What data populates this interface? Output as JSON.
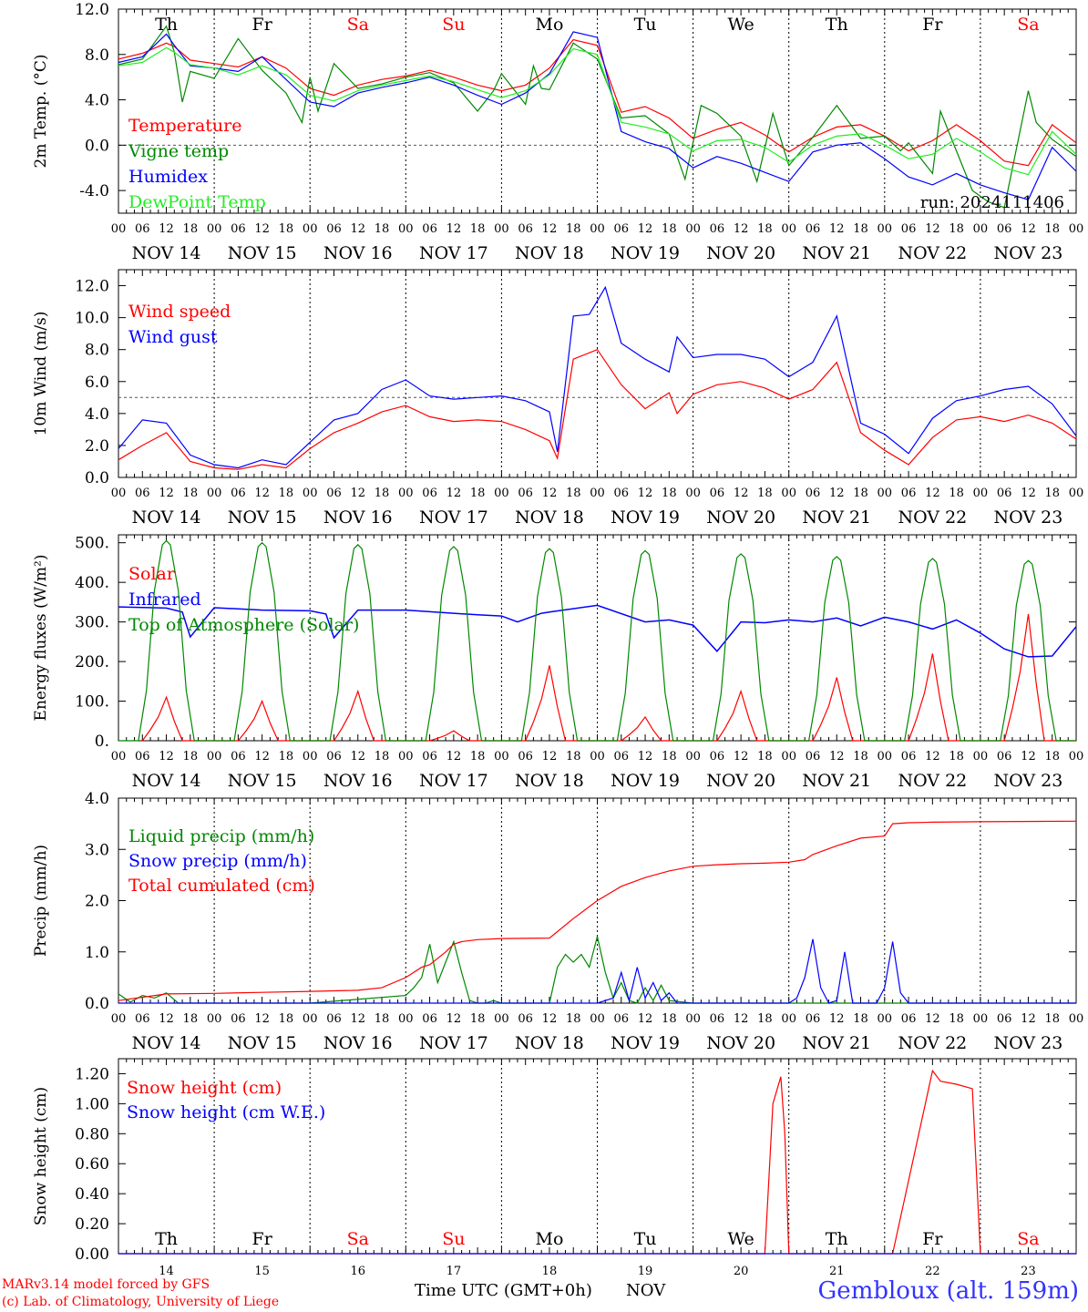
{
  "colors": {
    "red": "#ff0000",
    "green": "#008800",
    "blue": "#0000ff",
    "lightgreen": "#22ee22",
    "weekend": "#ff0000"
  },
  "weekday_labels": [
    "Th",
    "Fr",
    "Sa",
    "Su",
    "Mo",
    "Tu",
    "We",
    "Th",
    "Fr",
    "Sa"
  ],
  "weekend_days": [
    2,
    3,
    9
  ],
  "date_labels": [
    "NOV 14",
    "NOV 15",
    "NOV 16",
    "NOV 17",
    "NOV 18",
    "NOV 19",
    "NOV 20",
    "NOV 21",
    "NOV 22",
    "NOV 23"
  ],
  "hour_ticks": [
    "00",
    "06",
    "12",
    "18"
  ],
  "last_tick_label": "00",
  "bottom_day_numbers": [
    "14",
    "15",
    "16",
    "17",
    "18",
    "19",
    "20",
    "21",
    "22",
    "23"
  ],
  "run_label": "run: 2024111406",
  "footer": {
    "model": "MARv3.14 model forced by GFS",
    "lab": "(c) Lab. of Climatology, University of Liege",
    "xlabel": "Time UTC (GMT+0h)",
    "month": "NOV",
    "station": "Gembloux (alt. 159m)"
  },
  "chart_data": [
    {
      "type": "line",
      "ylabel": "2m Temp. (°C)",
      "ylim": [
        -6,
        12
      ],
      "yticks": [
        "-4.0",
        "0.0",
        "4.0",
        "8.0",
        "12.0"
      ],
      "refline": 0,
      "x_unit": "hours since NOV 14 00 UTC",
      "series": [
        {
          "name": "Temperature",
          "color": "#ff0000",
          "x": [
            0,
            6,
            12,
            14,
            18,
            24,
            30,
            36,
            42,
            48,
            54,
            60,
            66,
            72,
            78,
            84,
            90,
            96,
            102,
            108,
            114,
            120,
            126,
            132,
            138,
            144,
            150,
            156,
            162,
            168,
            174,
            180,
            186,
            192,
            198,
            204,
            210,
            216,
            222,
            228,
            234,
            240
          ],
          "values": [
            7.6,
            8.1,
            9.0,
            8.7,
            7.5,
            7.2,
            6.9,
            7.8,
            6.8,
            5.0,
            4.4,
            5.3,
            5.8,
            6.1,
            6.6,
            6.0,
            5.3,
            4.8,
            5.3,
            6.8,
            9.3,
            8.8,
            2.9,
            3.4,
            2.4,
            0.6,
            1.4,
            2.0,
            0.9,
            -0.6,
            0.7,
            1.6,
            1.8,
            0.8,
            -0.5,
            0.4,
            1.8,
            0.4,
            -1.4,
            -1.8,
            1.8,
            0.2
          ]
        },
        {
          "name": "Vigne temp",
          "color": "#008800",
          "x": [
            0,
            6,
            12,
            14,
            16,
            18,
            24,
            30,
            36,
            42,
            46,
            48,
            50,
            54,
            60,
            66,
            72,
            78,
            84,
            90,
            94,
            96,
            102,
            104,
            106,
            108,
            114,
            120,
            126,
            132,
            138,
            142,
            146,
            150,
            156,
            160,
            164,
            168,
            174,
            180,
            186,
            192,
            196,
            198,
            204,
            206,
            210,
            214,
            218,
            222,
            228,
            230,
            234,
            240
          ],
          "values": [
            7.1,
            7.6,
            10.5,
            8.2,
            3.8,
            6.5,
            5.9,
            9.4,
            6.6,
            4.6,
            2.0,
            6.0,
            3.0,
            7.2,
            5.0,
            5.4,
            6.0,
            6.4,
            5.5,
            3.0,
            4.8,
            6.3,
            3.6,
            7.0,
            5.0,
            4.9,
            9.0,
            7.6,
            2.4,
            2.6,
            1.0,
            -3.0,
            3.5,
            2.8,
            0.8,
            -3.2,
            2.8,
            -1.8,
            0.7,
            3.5,
            0.6,
            0.8,
            -0.5,
            0.2,
            -2.5,
            3.0,
            -0.5,
            -4.0,
            -5.0,
            -5.5,
            4.8,
            2.0,
            0.5,
            -1.0
          ]
        },
        {
          "name": "Humidex",
          "color": "#0000ff",
          "x": [
            0,
            6,
            12,
            14,
            18,
            24,
            30,
            36,
            42,
            48,
            54,
            60,
            66,
            72,
            78,
            84,
            90,
            96,
            102,
            108,
            114,
            120,
            126,
            132,
            138,
            144,
            150,
            156,
            162,
            168,
            174,
            180,
            186,
            192,
            198,
            204,
            210,
            216,
            222,
            228,
            234,
            240
          ],
          "values": [
            7.3,
            7.8,
            9.8,
            8.8,
            7.0,
            6.8,
            6.5,
            7.8,
            5.8,
            3.8,
            3.4,
            4.6,
            5.1,
            5.5,
            6.0,
            5.3,
            4.4,
            3.6,
            4.6,
            6.3,
            10.0,
            9.5,
            1.2,
            0.3,
            -0.3,
            -2.0,
            -1.0,
            -1.6,
            -2.4,
            -3.2,
            -0.6,
            0.0,
            0.2,
            -1.2,
            -2.8,
            -3.5,
            -2.5,
            -3.5,
            -4.2,
            -4.8,
            -0.2,
            -2.3
          ]
        },
        {
          "name": "DewPoint Temp",
          "color": "#22ee22",
          "x": [
            0,
            6,
            12,
            14,
            18,
            24,
            30,
            36,
            42,
            48,
            54,
            60,
            66,
            72,
            78,
            84,
            90,
            96,
            102,
            108,
            114,
            120,
            126,
            132,
            138,
            144,
            150,
            156,
            162,
            168,
            174,
            180,
            186,
            192,
            198,
            204,
            210,
            216,
            222,
            228,
            234,
            240
          ],
          "values": [
            7.0,
            7.3,
            8.6,
            8.2,
            7.1,
            6.8,
            6.2,
            7.0,
            6.2,
            4.4,
            3.9,
            4.8,
            5.3,
            5.7,
            6.1,
            5.6,
            4.9,
            4.2,
            4.8,
            6.2,
            8.5,
            8.0,
            2.0,
            1.6,
            1.0,
            -0.5,
            0.4,
            0.5,
            -0.2,
            -1.5,
            0.0,
            0.8,
            1.0,
            0.0,
            -1.2,
            -0.8,
            0.6,
            -0.6,
            -2.0,
            -2.6,
            1.2,
            -0.8
          ]
        }
      ]
    },
    {
      "type": "line",
      "ylabel": "10m Wind (m/s)",
      "ylim": [
        0,
        13
      ],
      "yticks": [
        "0.0",
        "2.0",
        "4.0",
        "6.0",
        "8.0",
        "10.0",
        "12.0"
      ],
      "refline": 5,
      "x_unit": "hours since NOV 14 00 UTC",
      "series": [
        {
          "name": "Wind speed",
          "color": "#ff0000",
          "x": [
            0,
            6,
            12,
            18,
            24,
            30,
            36,
            42,
            48,
            54,
            60,
            66,
            72,
            78,
            84,
            90,
            96,
            102,
            108,
            110,
            114,
            120,
            126,
            132,
            138,
            140,
            144,
            150,
            156,
            162,
            168,
            174,
            180,
            186,
            192,
            198,
            204,
            210,
            216,
            222,
            228,
            234,
            240
          ],
          "values": [
            1.1,
            2.0,
            2.8,
            1.0,
            0.6,
            0.5,
            0.8,
            0.6,
            1.8,
            2.8,
            3.4,
            4.1,
            4.5,
            3.8,
            3.5,
            3.6,
            3.5,
            3.0,
            2.3,
            1.2,
            7.4,
            8.0,
            5.8,
            4.3,
            5.3,
            4.0,
            5.2,
            5.8,
            6.0,
            5.6,
            4.9,
            5.5,
            7.2,
            2.8,
            1.7,
            0.8,
            2.5,
            3.6,
            3.8,
            3.5,
            3.9,
            3.4,
            2.4
          ]
        },
        {
          "name": "Wind gust",
          "color": "#0000ff",
          "x": [
            0,
            6,
            12,
            18,
            24,
            30,
            36,
            42,
            48,
            54,
            60,
            66,
            72,
            78,
            84,
            90,
            96,
            102,
            108,
            110,
            114,
            118,
            122,
            126,
            132,
            138,
            140,
            144,
            150,
            156,
            162,
            168,
            174,
            180,
            186,
            192,
            198,
            204,
            210,
            216,
            222,
            228,
            234,
            240
          ],
          "values": [
            1.8,
            3.6,
            3.4,
            1.4,
            0.8,
            0.6,
            1.1,
            0.8,
            2.2,
            3.6,
            4.0,
            5.5,
            6.1,
            5.1,
            4.9,
            5.0,
            5.1,
            4.8,
            4.1,
            1.6,
            10.1,
            10.2,
            11.9,
            8.4,
            7.4,
            6.6,
            8.8,
            7.5,
            7.7,
            7.7,
            7.4,
            6.3,
            7.2,
            10.1,
            3.4,
            2.7,
            1.5,
            3.7,
            4.8,
            5.1,
            5.5,
            5.7,
            4.6,
            2.6
          ]
        }
      ]
    },
    {
      "type": "line",
      "ylabel": "Energy fluxes (W/m²)",
      "ylim": [
        0,
        520
      ],
      "yticks": [
        "0.",
        "100.",
        "200.",
        "300.",
        "400.",
        "500."
      ],
      "x_unit": "hours since NOV 14 00 UTC",
      "series": [
        {
          "name": "Solar",
          "color": "#ff0000",
          "values_daily": [
            110,
            100,
            125,
            25,
            190,
            60,
            125,
            160,
            220,
            320
          ]
        },
        {
          "name": "Infrared",
          "color": "#0000ff",
          "x": [
            0,
            12,
            16,
            18,
            24,
            36,
            48,
            52,
            54,
            60,
            72,
            84,
            90,
            96,
            100,
            106,
            108,
            120,
            132,
            138,
            144,
            150,
            156,
            162,
            168,
            174,
            180,
            186,
            192,
            198,
            204,
            210,
            216,
            222,
            228,
            234,
            240
          ],
          "values": [
            338,
            335,
            325,
            262,
            336,
            330,
            328,
            320,
            260,
            330,
            330,
            322,
            318,
            315,
            300,
            322,
            325,
            342,
            300,
            305,
            292,
            226,
            300,
            298,
            305,
            300,
            310,
            290,
            312,
            300,
            282,
            305,
            272,
            232,
            212,
            214,
            288
          ]
        },
        {
          "name": "Top of Atmosphere (Solar)",
          "color": "#008800",
          "values_daily": [
            505,
            500,
            495,
            490,
            485,
            480,
            472,
            465,
            460,
            455
          ]
        }
      ]
    },
    {
      "type": "line",
      "ylabel": "Precip (mm/h)",
      "ylim": [
        0,
        4
      ],
      "yticks": [
        "0.0",
        "1.0",
        "2.0",
        "3.0",
        "4.0"
      ],
      "x_unit": "hours since NOV 14 00 UTC",
      "series": [
        {
          "name": "Liquid precip (mm/h)",
          "color": "#008800",
          "x": [
            0,
            3,
            6,
            9,
            12,
            15,
            18,
            24,
            48,
            72,
            74,
            76,
            78,
            80,
            82,
            84,
            86,
            88,
            90,
            92,
            94,
            96,
            102,
            108,
            110,
            112,
            114,
            116,
            118,
            120,
            122,
            124,
            126,
            128,
            130,
            132,
            134,
            136,
            138,
            144,
            150,
            240
          ],
          "values": [
            0.18,
            0.02,
            0.15,
            0.1,
            0.2,
            0.0,
            0.0,
            0.0,
            0.0,
            0.15,
            0.3,
            0.5,
            1.15,
            0.4,
            0.8,
            1.2,
            0.6,
            0.05,
            0.0,
            0.0,
            0.05,
            0.0,
            0.0,
            0.0,
            0.7,
            0.95,
            0.8,
            0.95,
            0.7,
            1.3,
            0.6,
            0.1,
            0.4,
            0.05,
            0.0,
            0.3,
            0.05,
            0.35,
            0.05,
            0.0,
            0.0,
            0.0
          ]
        },
        {
          "name": "Snow precip (mm/h)",
          "color": "#0000ff",
          "x": [
            0,
            120,
            124,
            126,
            128,
            130,
            132,
            134,
            136,
            138,
            140,
            144,
            168,
            170,
            172,
            174,
            176,
            178,
            180,
            182,
            184,
            186,
            190,
            192,
            194,
            196,
            198,
            200,
            240
          ],
          "values": [
            0.0,
            0.0,
            0.1,
            0.6,
            0.05,
            0.7,
            0.1,
            0.4,
            0.05,
            0.2,
            0.0,
            0.0,
            0.0,
            0.1,
            0.5,
            1.25,
            0.3,
            0.0,
            0.05,
            1.0,
            0.0,
            0.0,
            0.0,
            0.3,
            1.2,
            0.2,
            0.0,
            0.0,
            0.0
          ]
        },
        {
          "name": "Total cumulated (cm)",
          "color": "#ff0000",
          "x": [
            0,
            12,
            24,
            36,
            48,
            60,
            66,
            72,
            76,
            78,
            82,
            84,
            86,
            90,
            96,
            108,
            114,
            120,
            126,
            132,
            138,
            144,
            150,
            156,
            162,
            168,
            172,
            174,
            180,
            186,
            192,
            194,
            198,
            204,
            216,
            240
          ],
          "values": [
            0.05,
            0.18,
            0.19,
            0.21,
            0.23,
            0.25,
            0.3,
            0.5,
            0.7,
            0.75,
            1.0,
            1.15,
            1.2,
            1.24,
            1.26,
            1.27,
            1.65,
            2.0,
            2.28,
            2.45,
            2.58,
            2.67,
            2.7,
            2.72,
            2.73,
            2.75,
            2.8,
            2.9,
            3.07,
            3.22,
            3.26,
            3.5,
            3.52,
            3.53,
            3.54,
            3.55
          ]
        }
      ]
    },
    {
      "type": "line",
      "ylabel": "Snow height (cm)",
      "ylim": [
        0,
        1.3
      ],
      "yticks": [
        "0.00",
        "0.20",
        "0.40",
        "0.60",
        "0.80",
        "1.00",
        "1.20"
      ],
      "x_unit": "hours since NOV 14 00 UTC",
      "series": [
        {
          "name": "Snow height (cm)",
          "color": "#ff0000",
          "x": [
            0,
            162,
            164,
            166,
            167,
            168,
            170,
            180,
            190,
            194,
            204,
            206,
            210,
            214,
            216,
            240
          ],
          "values": [
            0,
            0,
            1.0,
            1.18,
            0.8,
            0.0,
            0.0,
            0.0,
            0.0,
            0.0,
            1.22,
            1.15,
            1.13,
            1.1,
            0.0,
            0.0
          ]
        },
        {
          "name": "Snow height (cm W.E.)",
          "color": "#0000ff",
          "x": [
            0,
            240
          ],
          "values": [
            0,
            0
          ]
        }
      ]
    }
  ]
}
